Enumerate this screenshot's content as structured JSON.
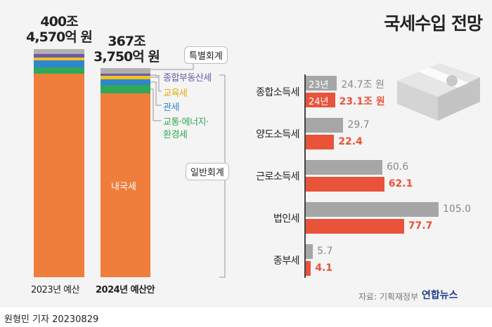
{
  "title": "국세수입 전망",
  "footer": {
    "byline": "원형민 기자  20230829",
    "source": "자료: 기획재정부",
    "logo": "연합뉴스"
  },
  "labels": {
    "special": "특별회계",
    "general": "일반회계",
    "domestic": "내국세",
    "seg_jongbu": "종합부동산세",
    "seg_edu": "교육세",
    "seg_customs": "관세",
    "seg_traffic1": "교통·에너지·",
    "seg_traffic2": "환경세"
  },
  "colors": {
    "special": "#b0b0b0",
    "jongbu": "#6a5aa8",
    "edu": "#f5c21b",
    "customs": "#2f86d0",
    "traffic": "#2fa857",
    "domestic": "#ef7d3c",
    "bar2023": "#a6a6a6",
    "bar2024": "#e8533a"
  },
  "chart_data": [
    {
      "type": "bar",
      "stacked": true,
      "categories": [
        "2023년 예산",
        "2024년 예산안"
      ],
      "totals_label": [
        {
          "main": "400조",
          "sub": "4,570억 원"
        },
        {
          "main": "367조",
          "sub": "3,750억 원"
        }
      ],
      "totals": [
        400.457,
        367.375
      ],
      "series": [
        {
          "name": "특별회계",
          "values": [
            8.6,
            9.9
          ]
        },
        {
          "name": "종합부동산세",
          "values": [
            5.7,
            4.1
          ]
        },
        {
          "name": "교육세",
          "values": [
            5.9,
            5.5
          ]
        },
        {
          "name": "관세",
          "values": [
            11.3,
            10.3
          ]
        },
        {
          "name": "교통·에너지·환경세",
          "values": [
            11.1,
            15.3
          ]
        },
        {
          "name": "내국세",
          "values": [
            357.857,
            322.275
          ]
        }
      ]
    },
    {
      "type": "bar",
      "orientation": "horizontal",
      "categories": [
        "종합소득세",
        "양도소득세",
        "근로소득세",
        "법인세",
        "종부세"
      ],
      "series": [
        {
          "name": "23년",
          "values": [
            24.7,
            29.7,
            60.6,
            105.0,
            5.7
          ],
          "labels": [
            "24.7조 원",
            "29.7",
            "60.6",
            "105.0",
            "5.7"
          ]
        },
        {
          "name": "24년",
          "values": [
            23.1,
            22.4,
            62.1,
            77.7,
            4.1
          ],
          "labels": [
            "23.1조 원",
            "22.4",
            "62.1",
            "77.7",
            "4.1"
          ]
        }
      ],
      "unit": "조 원"
    }
  ]
}
